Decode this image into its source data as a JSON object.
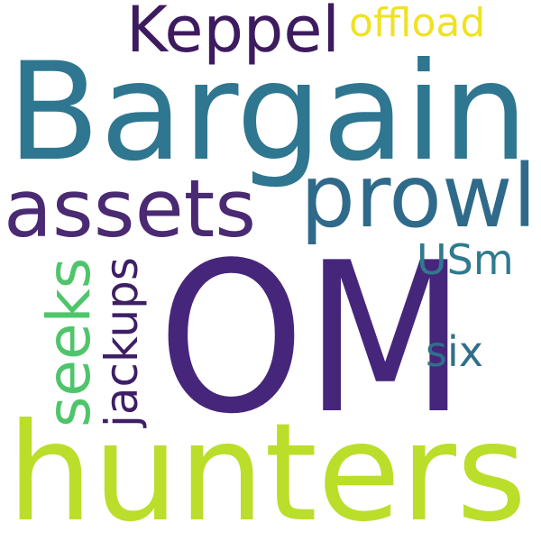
{
  "word_cloud": {
    "words": [
      {
        "key": "bargain",
        "text": "Bargain",
        "color": "#2f7690"
      },
      {
        "key": "om",
        "text": "OM",
        "color": "#46267a"
      },
      {
        "key": "hunters",
        "text": "hunters",
        "color": "#bade2a"
      },
      {
        "key": "keppel",
        "text": "Keppel",
        "color": "#3d1b5f"
      },
      {
        "key": "offload",
        "text": "offload",
        "color": "#efe224"
      },
      {
        "key": "assets",
        "text": "assets",
        "color": "#4a2a72"
      },
      {
        "key": "prowl",
        "text": "prowl",
        "color": "#2f6a8a"
      },
      {
        "key": "seeks",
        "text": "seeks",
        "color": "#4fc56b"
      },
      {
        "key": "jackups",
        "text": "jackups",
        "color": "#3e1f66"
      },
      {
        "key": "usm",
        "text": "USm",
        "color": "#2f7a8e"
      },
      {
        "key": "six",
        "text": "six",
        "color": "#2f6f8c"
      }
    ]
  }
}
